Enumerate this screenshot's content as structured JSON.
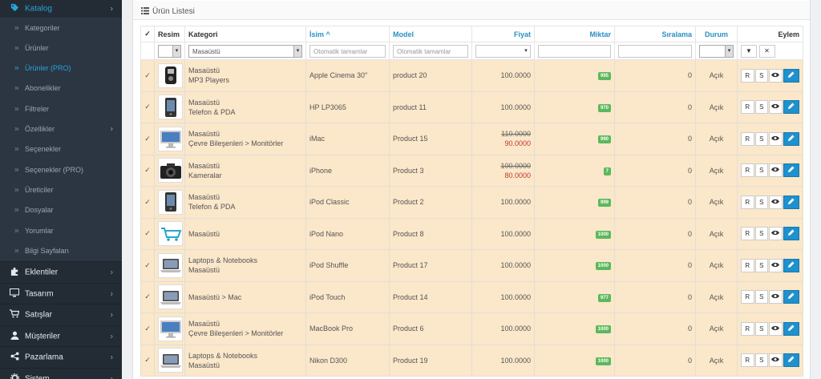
{
  "sidebar": {
    "catalog_label": "Katalog",
    "sub_items": [
      {
        "label": "Kategoriler",
        "active": false
      },
      {
        "label": "Ürünler",
        "active": false
      },
      {
        "label": "Ürünler (PRO)",
        "active": true
      },
      {
        "label": "Abonelikler",
        "active": false
      },
      {
        "label": "Filtreler",
        "active": false
      },
      {
        "label": "Özellikler",
        "active": false,
        "chevron": true
      },
      {
        "label": "Seçenekler",
        "active": false
      },
      {
        "label": "Seçenekler (PRO)",
        "active": false
      },
      {
        "label": "Üreticiler",
        "active": false
      },
      {
        "label": "Dosyalar",
        "active": false
      },
      {
        "label": "Yorumlar",
        "active": false
      },
      {
        "label": "Bilgi Sayfaları",
        "active": false
      }
    ],
    "main_items": [
      {
        "label": "Eklentiler",
        "icon": "puzzle-icon"
      },
      {
        "label": "Tasarım",
        "icon": "monitor-icon"
      },
      {
        "label": "Satışlar",
        "icon": "cart-icon"
      },
      {
        "label": "Müşteriler",
        "icon": "user-icon"
      },
      {
        "label": "Pazarlama",
        "icon": "share-icon"
      },
      {
        "label": "Sistem",
        "icon": "gear-icon"
      }
    ]
  },
  "panel": {
    "title": "Ürün Listesi"
  },
  "table": {
    "headers": {
      "image": "Resim",
      "category": "Kategori",
      "name": "İsim",
      "model": "Model",
      "price": "Fiyat",
      "quantity": "Miktar",
      "sort": "Sıralama",
      "status": "Durum",
      "action": "Eylem"
    },
    "filters": {
      "category_value": "Masaüstü",
      "name_placeholder": "Otomatik tamamlar",
      "model_placeholder": "Otomatik tamamlar"
    },
    "rows": [
      {
        "image": "mp3-player",
        "category": [
          "Masaüstü",
          "MP3 Players"
        ],
        "name": "Apple Cinema 30\"",
        "model": "product 20",
        "price": "100.0000",
        "special": "",
        "quantity": "995",
        "sort": "0",
        "status": "Açık"
      },
      {
        "image": "phone",
        "category": [
          "Masaüstü",
          "Telefon & PDA"
        ],
        "name": "HP LP3065",
        "model": "product 11",
        "price": "100.0000",
        "special": "",
        "quantity": "970",
        "sort": "0",
        "status": "Açık"
      },
      {
        "image": "monitor",
        "category": [
          "Masaüstü",
          "Çevre Bileşenleri > Monitörler"
        ],
        "name": "iMac",
        "model": "Product 15",
        "price": "110.0000",
        "special": "90.0000",
        "quantity": "990",
        "sort": "0",
        "status": "Açık"
      },
      {
        "image": "camera",
        "category": [
          "Masaüstü",
          "Kameralar"
        ],
        "name": "iPhone",
        "model": "Product 3",
        "price": "100.0000",
        "special": "80.0000",
        "quantity": "7",
        "sort": "0",
        "status": "Açık"
      },
      {
        "image": "phone",
        "category": [
          "Masaüstü",
          "Telefon & PDA"
        ],
        "name": "iPod Classic",
        "model": "Product 2",
        "price": "100.0000",
        "special": "",
        "quantity": "999",
        "sort": "0",
        "status": "Açık"
      },
      {
        "image": "cart",
        "category": [
          "Masaüstü"
        ],
        "name": "iPod Nano",
        "model": "Product 8",
        "price": "100.0000",
        "special": "",
        "quantity": "1000",
        "sort": "0",
        "status": "Açık"
      },
      {
        "image": "laptop",
        "category": [
          "Laptops & Notebooks",
          "Masaüstü"
        ],
        "name": "iPod Shuffle",
        "model": "Product 17",
        "price": "100.0000",
        "special": "",
        "quantity": "1000",
        "sort": "0",
        "status": "Açık"
      },
      {
        "image": "laptop",
        "category": [
          "Masaüstü > Mac"
        ],
        "name": "iPod Touch",
        "model": "Product 14",
        "price": "100.0000",
        "special": "",
        "quantity": "977",
        "sort": "0",
        "status": "Açık"
      },
      {
        "image": "monitor",
        "category": [
          "Masaüstü",
          "Çevre Bileşenleri > Monitörler"
        ],
        "name": "MacBook Pro",
        "model": "Product 6",
        "price": "100.0000",
        "special": "",
        "quantity": "1000",
        "sort": "0",
        "status": "Açık"
      },
      {
        "image": "laptop",
        "category": [
          "Laptops & Notebooks",
          "Masaüstü"
        ],
        "name": "Nikon D300",
        "model": "Product 19",
        "price": "100.0000",
        "special": "",
        "quantity": "1000",
        "sort": "0",
        "status": "Açık"
      }
    ],
    "action_labels": {
      "r": "R",
      "s": "S"
    }
  },
  "colors": {
    "accent": "#1e91cf",
    "row_bg": "#fbe7ca",
    "sidebar_bg": "#2b3642",
    "qty_badge": "#5cb85c"
  }
}
